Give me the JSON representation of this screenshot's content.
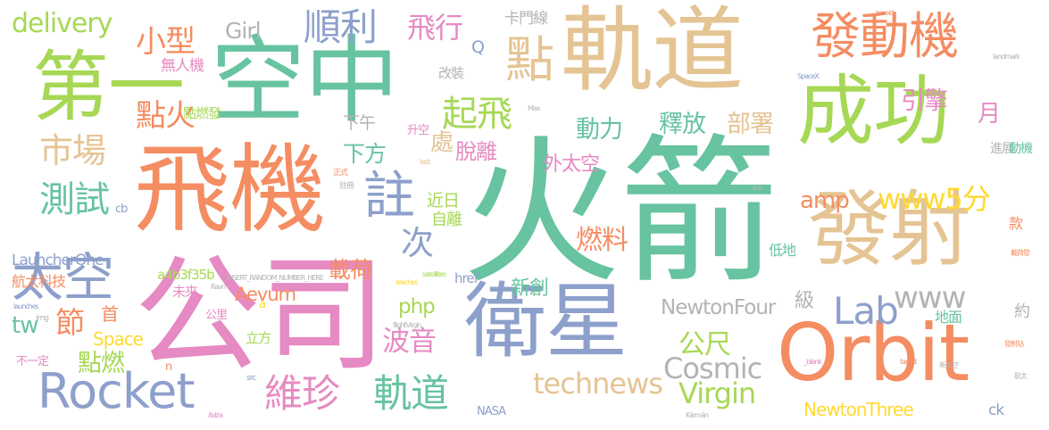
{
  "palette": {
    "green": "#67c3a0",
    "orange": "#f48d62",
    "blue": "#8da0cb",
    "pink": "#e68ac3",
    "lime": "#a6d855",
    "yellow": "#ffd930",
    "tan": "#e5c494",
    "gray": "#b3b3b3"
  },
  "words": [
    "火箭",
    "飛機",
    "公司",
    "衛星",
    "軌道",
    "空中",
    "第一",
    "發射",
    "成功",
    "Orbit",
    "發動機",
    "點",
    "Rocket",
    "太空",
    "維珍",
    "軌道",
    "順利",
    "飛行",
    "delivery",
    "小型",
    "點火",
    "起飛",
    "註",
    "測試",
    "市場",
    "Lab",
    "www",
    "www5分",
    "amp",
    "Cosmic",
    "Virgin",
    "technews",
    "NewtonThree",
    "NewtonFour",
    "波音",
    "燃料",
    "點燃",
    "Space",
    "Aevum",
    "a4b3f35b",
    "php",
    "公尺",
    "載荷",
    "次",
    "節",
    "tw",
    "Girl",
    "卡門線",
    "Q",
    "動力",
    "釋放",
    "部署",
    "引擎",
    "月",
    "處",
    "脫離",
    "下方",
    "下午",
    "外太空",
    "低地",
    "地面",
    "航太科技",
    "LauncherOne",
    "無人機",
    "點燃發",
    "新創",
    "近日",
    "自離",
    "href",
    "立方",
    "首",
    "未來",
    "公里",
    "改裝",
    "升空",
    "進展",
    "款",
    "約",
    "級",
    "動機",
    "cb",
    "ck",
    "NASA",
    "不一定",
    "a",
    "n",
    "正式",
    "註冊",
    "src",
    "img",
    "SpaceX",
    "landmark",
    "Max",
    "test",
    "line",
    "target",
    "flightVirgin",
    "satellites",
    "reaches",
    "Ravn",
    "Astra",
    "Kármán",
    "_blank",
    "INSERT_RANDOM_NUMBER_HERE",
    "launches",
    "zoneid",
    "發射站",
    "載荷發",
    "新太空",
    "航太"
  ]
}
